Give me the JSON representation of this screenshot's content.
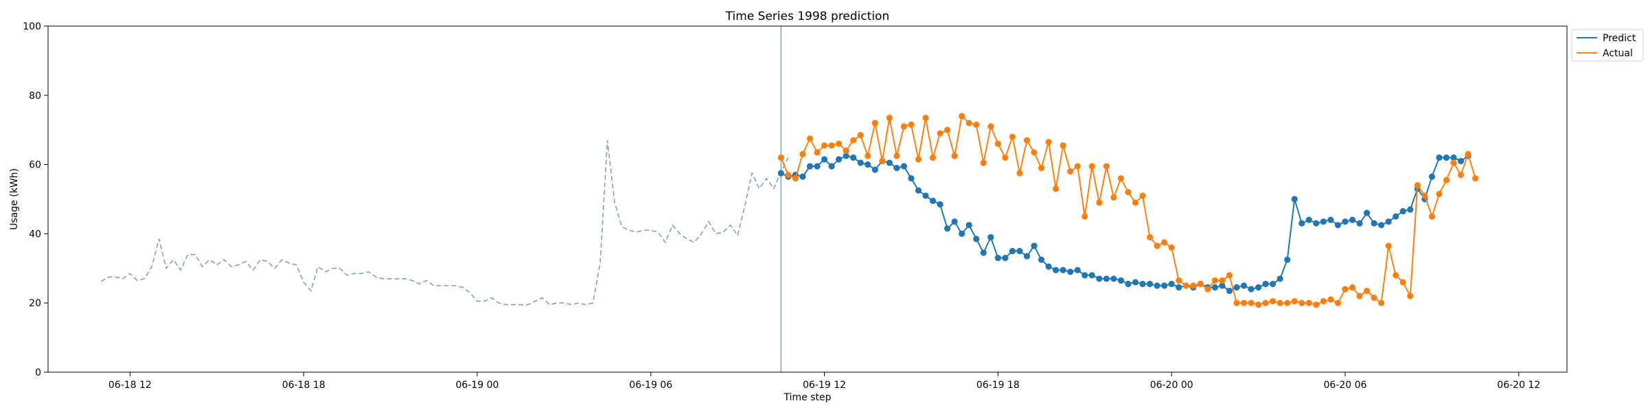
{
  "chart_data": {
    "type": "line",
    "title": "Time Series 1998 prediction",
    "xlabel": "Time step",
    "ylabel": "Usage (kWh)",
    "ylim": [
      0,
      100
    ],
    "yticks": [
      0,
      20,
      40,
      60,
      80,
      100
    ],
    "xlim": [
      "2019-06-18 09:10",
      "2019-06-20 13:40"
    ],
    "xticks": [
      {
        "t": "2019-06-18 12:00",
        "label": "06-18 12"
      },
      {
        "t": "2019-06-18 18:00",
        "label": "06-18 18"
      },
      {
        "t": "2019-06-19 00:00",
        "label": "06-19 00"
      },
      {
        "t": "2019-06-19 06:00",
        "label": "06-19 06"
      },
      {
        "t": "2019-06-19 12:00",
        "label": "06-19 12"
      },
      {
        "t": "2019-06-19 18:00",
        "label": "06-19 18"
      },
      {
        "t": "2019-06-20 00:00",
        "label": "06-20 00"
      },
      {
        "t": "2019-06-20 06:00",
        "label": "06-20 06"
      },
      {
        "t": "2019-06-20 12:00",
        "label": "06-20 12"
      }
    ],
    "split_time": "2019-06-19 10:30",
    "grid": false,
    "legend_position": "outside-top-right",
    "history": {
      "start": "2019-06-18 11:00",
      "step_minutes": 15,
      "color": "#7f9fc9",
      "values": [
        26.2,
        27.5,
        27.5,
        27.0,
        28.5,
        26.5,
        27.0,
        30.5,
        38.5,
        30.0,
        32.5,
        29.5,
        34.0,
        34.0,
        30.5,
        32.5,
        31.0,
        32.5,
        30.5,
        31.0,
        32.0,
        29.5,
        32.5,
        32.0,
        30.0,
        32.5,
        31.5,
        31.0,
        26.0,
        23.5,
        30.5,
        29.0,
        30.0,
        30.0,
        28.0,
        28.5,
        28.5,
        29.0,
        27.5,
        27.0,
        27.0,
        27.0,
        27.0,
        26.5,
        25.5,
        26.5,
        25.0,
        25.0,
        25.0,
        25.0,
        24.5,
        23.0,
        20.5,
        20.5,
        21.5,
        20.0,
        19.5,
        19.5,
        19.5,
        19.5,
        20.5,
        21.5,
        19.5,
        20.0,
        20.0,
        19.5,
        20.0,
        19.5,
        20.0,
        31.5,
        67.0,
        49.0,
        42.0,
        41.0,
        40.5,
        41.0,
        41.0,
        40.5,
        37.5,
        42.5,
        40.0,
        38.5,
        37.5,
        40.0,
        43.5,
        40.0,
        40.5,
        42.5,
        39.5,
        48.0,
        57.5,
        53.0,
        56.0,
        53.0,
        58.0,
        62.0
      ]
    },
    "series": [
      {
        "name": "Predict",
        "color": "#1f77b4",
        "start": "2019-06-19 10:30",
        "step_minutes": 15,
        "values": [
          57.5,
          56.5,
          57.0,
          56.5,
          59.5,
          59.5,
          61.5,
          59.5,
          61.5,
          62.5,
          62.0,
          60.5,
          60.0,
          58.5,
          61.0,
          60.5,
          59.0,
          59.5,
          56.0,
          52.5,
          51.0,
          49.5,
          48.5,
          41.5,
          43.5,
          40.0,
          42.5,
          38.5,
          34.5,
          39.0,
          33.0,
          33.0,
          35.0,
          35.0,
          33.5,
          36.5,
          32.5,
          30.5,
          29.5,
          29.5,
          29.0,
          29.5,
          28.0,
          28.0,
          27.0,
          27.0,
          27.0,
          26.5,
          25.5,
          26.0,
          25.5,
          25.5,
          25.0,
          25.0,
          25.5,
          24.5,
          25.0,
          24.5,
          25.5,
          24.5,
          24.5,
          25.0,
          23.5,
          24.5,
          25.0,
          24.0,
          24.5,
          25.5,
          25.5,
          27.0,
          32.5,
          50.0,
          43.0,
          44.0,
          43.0,
          43.5,
          44.0,
          42.5,
          43.5,
          44.0,
          43.0,
          46.0,
          43.0,
          42.5,
          43.5,
          45.0,
          46.5,
          47.0,
          53.0,
          50.0,
          56.5,
          62.0,
          62.0,
          62.0,
          61.0,
          62.5
        ]
      },
      {
        "name": "Actual",
        "color": "#ff7f0e",
        "start": "2019-06-19 10:30",
        "step_minutes": 15,
        "values": [
          62.0,
          57.0,
          56.0,
          63.0,
          67.5,
          63.5,
          65.5,
          65.5,
          66.0,
          64.0,
          67.0,
          68.5,
          62.5,
          72.0,
          61.0,
          73.5,
          62.5,
          71.0,
          71.5,
          61.5,
          73.5,
          62.0,
          69.0,
          70.0,
          62.5,
          74.0,
          72.0,
          71.5,
          60.5,
          71.0,
          66.0,
          62.0,
          68.0,
          57.5,
          67.0,
          63.5,
          59.0,
          66.5,
          53.0,
          65.5,
          58.0,
          59.5,
          45.0,
          59.5,
          49.0,
          59.5,
          50.5,
          56.0,
          52.0,
          49.0,
          51.0,
          39.0,
          36.5,
          37.5,
          36.0,
          26.5,
          25.0,
          25.0,
          25.5,
          24.0,
          26.5,
          26.5,
          28.0,
          20.0,
          20.0,
          20.0,
          19.5,
          20.0,
          20.5,
          20.0,
          20.0,
          20.5,
          20.0,
          20.0,
          19.5,
          20.5,
          21.0,
          20.0,
          24.0,
          24.5,
          22.0,
          23.5,
          21.5,
          20.0,
          36.5,
          28.0,
          26.0,
          22.0,
          54.0,
          51.0,
          45.0,
          51.5,
          55.5,
          60.5,
          57.0,
          63.0,
          56.0
        ]
      }
    ]
  }
}
